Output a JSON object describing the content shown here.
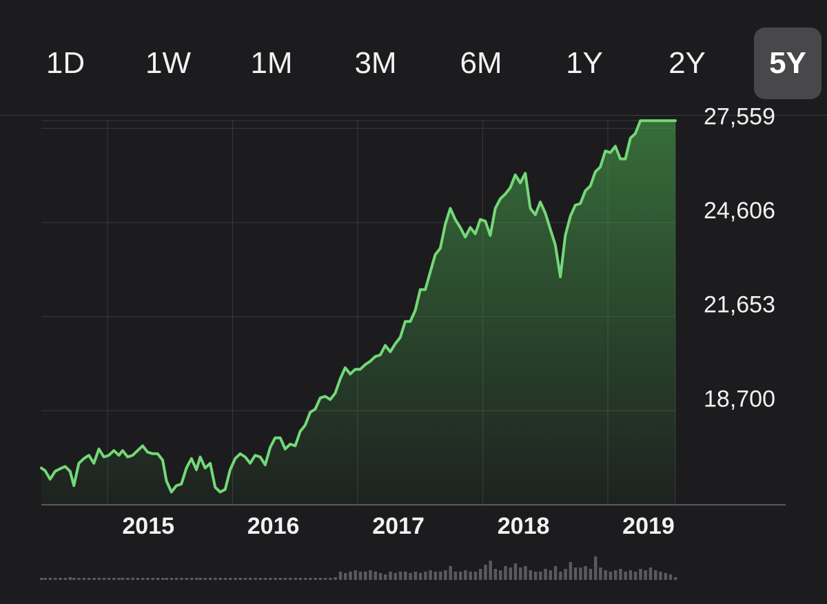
{
  "tabs": [
    {
      "label": "1D",
      "active": false
    },
    {
      "label": "1W",
      "active": false
    },
    {
      "label": "1M",
      "active": false
    },
    {
      "label": "3M",
      "active": false
    },
    {
      "label": "6M",
      "active": false
    },
    {
      "label": "1Y",
      "active": false
    },
    {
      "label": "2Y",
      "active": false
    },
    {
      "label": "5Y",
      "active": true
    }
  ],
  "colors": {
    "background": "#1c1c1e",
    "line": "#74d877",
    "active_tab": "#48484a",
    "grid": "#3a3a3c",
    "volume": "#5a5a5c"
  },
  "chart_data": {
    "type": "area",
    "title": "",
    "xlabel": "",
    "ylabel": "",
    "x_tick_labels": [
      "2015",
      "2016",
      "2017",
      "2018",
      "2019"
    ],
    "y_tick_labels": [
      "27,559",
      "24,606",
      "21,653",
      "18,700"
    ],
    "y_ticks": [
      27559,
      24606,
      21653,
      18700
    ],
    "xlim": [
      2014.47,
      2019.54
    ],
    "ylim": [
      15747,
      27806
    ],
    "grid": true,
    "legend": "none",
    "series": [
      {
        "x": [
          2014.47,
          2014.5,
          2014.54,
          2014.58,
          2014.62,
          2014.66,
          2014.7,
          2014.73,
          2014.77,
          2014.81,
          2014.85,
          2014.89,
          2014.93,
          2014.97,
          2015.01,
          2015.05,
          2015.09,
          2015.12,
          2015.16,
          2015.2,
          2015.24,
          2015.28,
          2015.32,
          2015.36,
          2015.4,
          2015.44,
          2015.47,
          2015.51,
          2015.55,
          2015.59,
          2015.63,
          2015.67,
          2015.71,
          2015.74,
          2015.78,
          2015.82,
          2015.86,
          2015.9,
          2015.94,
          2015.98,
          2016.02,
          2016.06,
          2016.1,
          2016.14,
          2016.18,
          2016.22,
          2016.26,
          2016.3,
          2016.34,
          2016.38,
          2016.42,
          2016.46,
          2016.5,
          2016.54,
          2016.58,
          2016.62,
          2016.66,
          2016.7,
          2016.74,
          2016.78,
          2016.82,
          2016.86,
          2016.9,
          2016.94,
          2016.98,
          2017.02,
          2017.06,
          2017.1,
          2017.14,
          2017.18,
          2017.22,
          2017.26,
          2017.3,
          2017.34,
          2017.38,
          2017.42,
          2017.46,
          2017.5,
          2017.54,
          2017.58,
          2017.62,
          2017.66,
          2017.7,
          2017.74,
          2017.78,
          2017.82,
          2017.86,
          2017.9,
          2017.94,
          2017.98,
          2018.02,
          2018.06,
          2018.1,
          2018.14,
          2018.18,
          2018.22,
          2018.26,
          2018.3,
          2018.34,
          2018.38,
          2018.42,
          2018.46,
          2018.5,
          2018.54,
          2018.58,
          2018.62,
          2018.66,
          2018.7,
          2018.74,
          2018.78,
          2018.82,
          2018.86,
          2018.9,
          2018.94,
          2018.98,
          2019.02,
          2019.06,
          2019.1,
          2019.14,
          2019.18,
          2019.22,
          2019.26,
          2019.3,
          2019.34,
          2019.38,
          2019.42,
          2019.46,
          2019.5,
          2019.54
        ],
        "values": [
          16900,
          16820,
          16550,
          16800,
          16880,
          16950,
          16800,
          16350,
          17050,
          17200,
          17300,
          17050,
          17500,
          17250,
          17300,
          17450,
          17300,
          17450,
          17250,
          17300,
          17450,
          17600,
          17400,
          17350,
          17350,
          17150,
          16500,
          16150,
          16350,
          16400,
          16900,
          17200,
          16850,
          17250,
          16900,
          17050,
          16300,
          16150,
          16230,
          16850,
          17200,
          17350,
          17250,
          17050,
          17300,
          17250,
          17000,
          17550,
          17850,
          17850,
          17500,
          17650,
          17600,
          18050,
          18250,
          18650,
          18750,
          19100,
          19150,
          19050,
          19250,
          19700,
          20050,
          19850,
          20000,
          20000,
          20150,
          20250,
          20400,
          20450,
          20750,
          20550,
          20800,
          21000,
          21500,
          21500,
          21850,
          22500,
          22500,
          23050,
          23600,
          23800,
          24550,
          25050,
          24700,
          24450,
          24150,
          24450,
          24250,
          24700,
          24650,
          24200,
          25050,
          25350,
          25500,
          25700,
          26100,
          25850,
          26150,
          25050,
          24850,
          25250,
          24900,
          24400,
          23900,
          22900,
          24200,
          24800,
          25150,
          25200,
          25600,
          25750,
          26200,
          26350,
          26850,
          26800,
          27000,
          26600,
          26600,
          27250,
          27400,
          27800,
          27800,
          27800,
          27800,
          27800,
          27800,
          27800,
          27800
        ],
        "volume": [
          0.05,
          0.05,
          0.05,
          0.06,
          0.05,
          0.06,
          0.1,
          0.06,
          0.05,
          0.05,
          0.06,
          0.05,
          0.08,
          0.06,
          0.05,
          0.05,
          0.06,
          0.05,
          0.06,
          0.08,
          0.06,
          0.05,
          0.06,
          0.05,
          0.06,
          0.05,
          0.07,
          0.06,
          0.05,
          0.06,
          0.06,
          0.05,
          0.06,
          0.05,
          0.06,
          0.06,
          0.05,
          0.05,
          0.06,
          0.05,
          0.06,
          0.05,
          0.06,
          0.05,
          0.07,
          0.05,
          0.06,
          0.05,
          0.06,
          0.05,
          0.06,
          0.05,
          0.06,
          0.05,
          0.06,
          0.05,
          0.06,
          0.05,
          0.06,
          0.05,
          0.1,
          0.3,
          0.25,
          0.3,
          0.35,
          0.3,
          0.3,
          0.35,
          0.3,
          0.25,
          0.2,
          0.3,
          0.25,
          0.3,
          0.3,
          0.25,
          0.3,
          0.25,
          0.3,
          0.35,
          0.3,
          0.3,
          0.35,
          0.5,
          0.3,
          0.3,
          0.35,
          0.3,
          0.3,
          0.4,
          0.55,
          0.7,
          0.4,
          0.35,
          0.5,
          0.45,
          0.6,
          0.45,
          0.5,
          0.35,
          0.3,
          0.3,
          0.4,
          0.35,
          0.5,
          0.3,
          0.4,
          0.65,
          0.45,
          0.45,
          0.5,
          0.4,
          0.85,
          0.45,
          0.35,
          0.3,
          0.35,
          0.4,
          0.3,
          0.35,
          0.3,
          0.4,
          0.35,
          0.45,
          0.35,
          0.3,
          0.25,
          0.2,
          0.1
        ]
      }
    ]
  }
}
